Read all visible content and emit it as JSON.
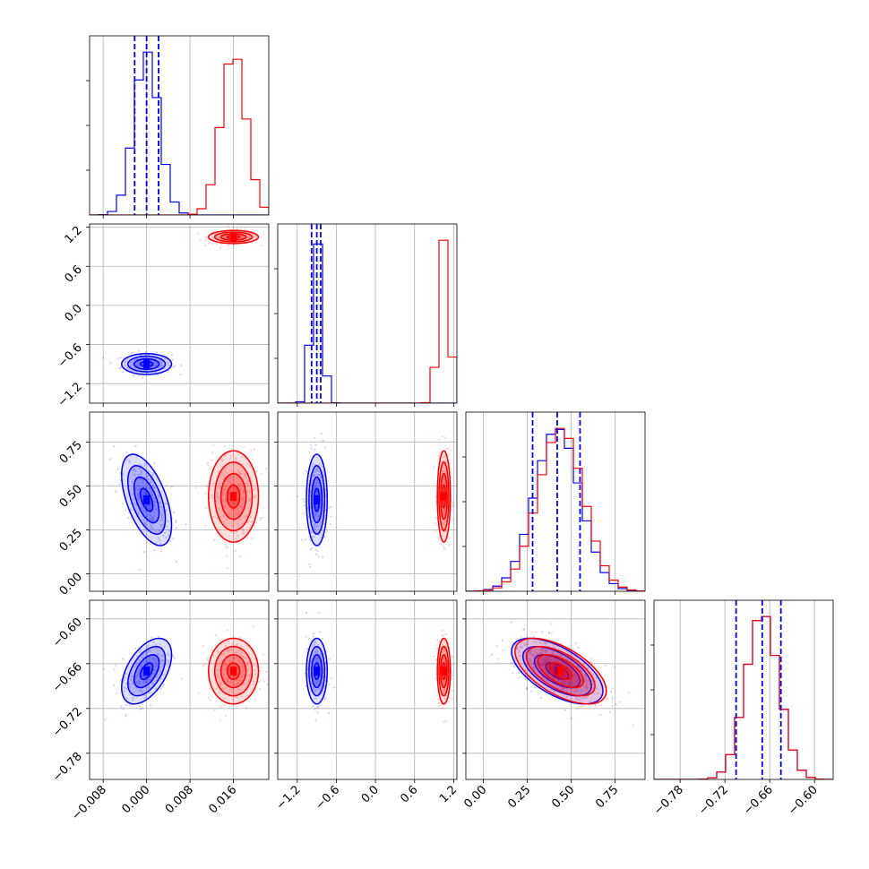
{
  "chart_data": {
    "type": "corner",
    "title": "",
    "params": [
      {
        "xlim": [
          -0.0105,
          0.0225
        ],
        "ticks": [
          -0.008,
          0.0,
          0.008,
          0.016
        ],
        "tick_labels": [
          "−0.008",
          "0.000",
          "0.008",
          "0.016"
        ]
      },
      {
        "xlim": [
          -1.5,
          1.25
        ],
        "ticks": [
          -1.2,
          -0.6,
          0.0,
          0.6,
          1.2
        ],
        "tick_labels": [
          "−1.2",
          "−0.6",
          "0.0",
          "0.6",
          "1.2"
        ]
      },
      {
        "xlim": [
          -0.1,
          0.92
        ],
        "ticks": [
          0.0,
          0.25,
          0.5,
          0.75
        ],
        "tick_labels": [
          "0.00",
          "0.25",
          "0.50",
          "0.75"
        ]
      },
      {
        "xlim": [
          -0.815,
          -0.575
        ],
        "ticks": [
          -0.78,
          -0.72,
          -0.66,
          -0.6
        ],
        "tick_labels": [
          "−0.78",
          "−0.72",
          "−0.66",
          "−0.60"
        ]
      }
    ],
    "series": [
      {
        "color": "#0000ff",
        "mean": [
          0.0,
          -0.9,
          0.42,
          -0.67
        ],
        "std": [
          0.0023,
          0.08,
          0.13,
          0.022
        ]
      },
      {
        "color": "#ff0000",
        "mean": [
          0.016,
          1.05,
          0.44,
          -0.67
        ],
        "std": [
          0.0023,
          0.05,
          0.13,
          0.022
        ]
      }
    ],
    "correlations": [
      {
        "i": 2,
        "j": 0,
        "blue": -0.55,
        "red": 0.0
      },
      {
        "i": 3,
        "j": 0,
        "blue": 0.5,
        "red": 0.0
      },
      {
        "i": 3,
        "j": 2,
        "blue": -0.6,
        "red": -0.6
      }
    ],
    "quantile_lines": [
      [
        -0.0022,
        0.0,
        0.0022
      ],
      [
        -0.98,
        -0.9,
        -0.84
      ],
      [
        0.28,
        0.42,
        0.55
      ],
      [
        -0.705,
        -0.67,
        -0.645
      ]
    ],
    "histogram_bins": 20,
    "grid": true,
    "legend": "none"
  }
}
